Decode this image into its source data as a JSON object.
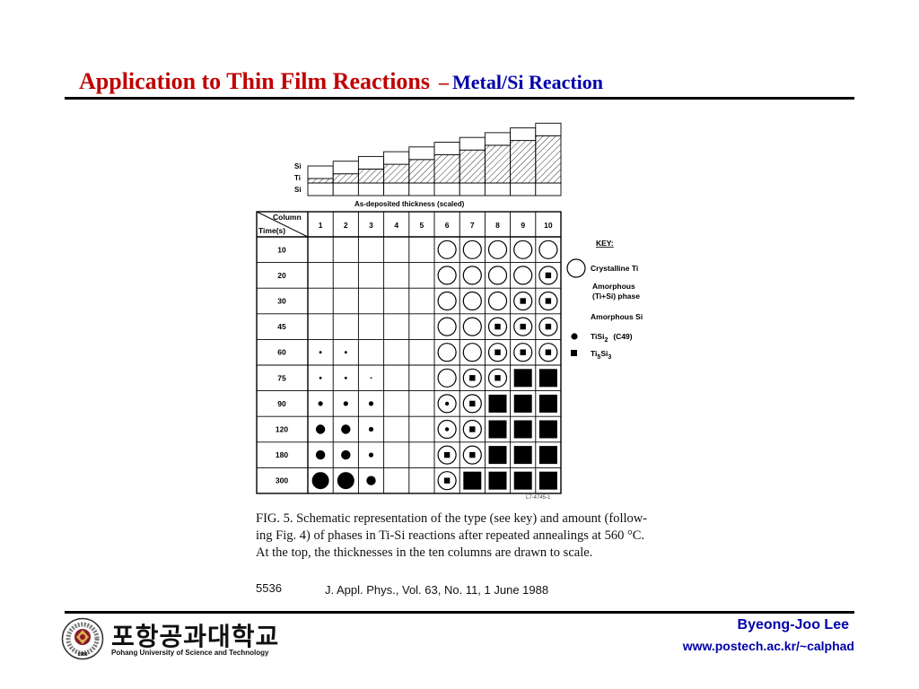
{
  "title": {
    "main": "Application to Thin Film Reactions",
    "dash": "–",
    "sub": "Metal/Si Reaction"
  },
  "layer_labels": [
    "Si",
    "Ti",
    "Si"
  ],
  "deposited_label": "As-deposited thickness (scaled)",
  "table": {
    "corner_column": "Column",
    "corner_time": "Time(s)",
    "columns": [
      "1",
      "2",
      "3",
      "4",
      "5",
      "6",
      "7",
      "8",
      "9",
      "10"
    ],
    "times": [
      "10",
      "20",
      "30",
      "45",
      "60",
      "75",
      "90",
      "120",
      "180",
      "300"
    ],
    "cells": [
      [
        "",
        "",
        "",
        "",
        "",
        "C",
        "C",
        "C",
        "C",
        "C"
      ],
      [
        "",
        "",
        "",
        "",
        "",
        "C",
        "C",
        "C",
        "C",
        "CS"
      ],
      [
        "",
        "",
        "",
        "",
        "",
        "C",
        "C",
        "C",
        "CS",
        "CS"
      ],
      [
        "",
        "",
        "",
        "",
        "",
        "C",
        "C",
        "CS",
        "CS",
        "CS"
      ],
      [
        "d1",
        "d1",
        "",
        "",
        "",
        "C",
        "C",
        "CS",
        "CS",
        "CS"
      ],
      [
        "d1",
        "d1",
        "d0",
        "",
        "",
        "C",
        "CS",
        "CS",
        "S",
        "S"
      ],
      [
        "d2",
        "d2",
        "d2",
        "",
        "",
        "CD",
        "CS",
        "S",
        "S",
        "S"
      ],
      [
        "d3",
        "d3",
        "d2",
        "",
        "",
        "CD",
        "CS",
        "S",
        "S",
        "S"
      ],
      [
        "d3",
        "d3",
        "d2",
        "",
        "",
        "CS",
        "CS",
        "S",
        "S",
        "S"
      ],
      [
        "d4",
        "d4",
        "d3",
        "",
        "",
        "CS",
        "S",
        "S",
        "S",
        "S"
      ]
    ],
    "tag": "L7-4745-1"
  },
  "key": {
    "title": "KEY:",
    "crystalline": "Crystalline Ti",
    "amorphous_1": "Amorphous",
    "amorphous_2": "(Ti+Si) phase",
    "amorphous_si": "Amorphous Si",
    "tisi2_a": "TiSi",
    "tisi2_b": "2",
    "tisi2_c": "(C49)",
    "ti5si3_a": "Ti",
    "ti5si3_b": "5",
    "ti5si3_c": "Si",
    "ti5si3_d": "3"
  },
  "caption": {
    "line1": "FIG. 5. Schematic representation of the type (see key) and amount (follow-",
    "line2": "ing Fig. 4) of phases in Ti-Si reactions after repeated annealings at 560 °C.",
    "line3": "At the top, the thicknesses in the ten columns are drawn to scale."
  },
  "reference": {
    "page": "5536",
    "text": "J. Appl. Phys., Vol. 63, No. 11, 1 June 1988"
  },
  "footer": {
    "author": "Byeong-Joo Lee",
    "url": "www.postech.ac.kr/~calphad",
    "university_ko": "포항공과대학교",
    "university_en": "Pohang University of Science and Technology",
    "seal_year": "1986"
  }
}
